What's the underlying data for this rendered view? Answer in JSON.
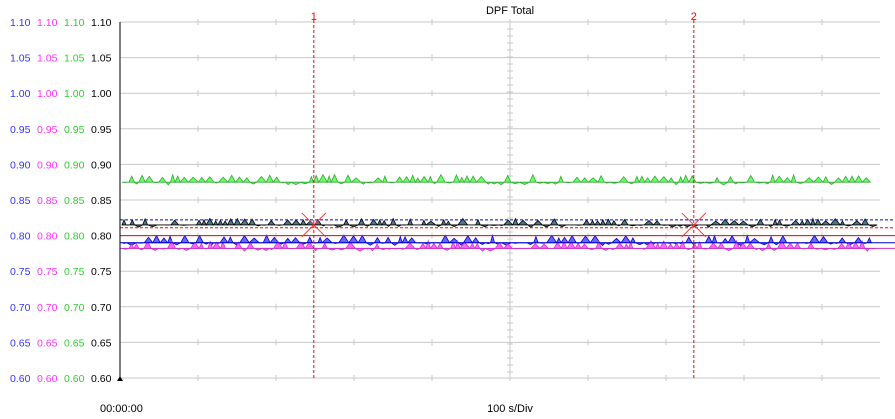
{
  "chart_data": {
    "type": "line",
    "title": "DPF  Total",
    "xlabel": "100 s/Div",
    "x_start_label": "00:00:00",
    "ylim": [
      0.6,
      1.1
    ],
    "y_ticks": [
      1.1,
      1.05,
      1.0,
      0.95,
      0.9,
      0.85,
      0.8,
      0.75,
      0.7,
      0.65,
      0.6
    ],
    "y_tick_labels": [
      "1.10",
      "1.05",
      "1.00",
      "0.95",
      "0.90",
      "0.85",
      "0.80",
      "0.75",
      "0.70",
      "0.65",
      "0.60"
    ],
    "axis_colors": [
      "#3333ff",
      "#ff33ff",
      "#33cc33",
      "#000000"
    ],
    "grid": true,
    "cursors": [
      {
        "label": "1",
        "x_fraction": 0.255
      },
      {
        "label": "2",
        "x_fraction": 0.755
      }
    ],
    "series": [
      {
        "color": "#66ff66",
        "edge": "#33aa33",
        "baseline": 0.875,
        "values": [
          0.88
        ]
      },
      {
        "color": "#4a7a80",
        "edge": "#000000",
        "baseline": 0.815,
        "values": [
          0.82
        ]
      },
      {
        "color": "#6666ff",
        "edge": "#0000cc",
        "baseline": 0.79,
        "values": [
          0.8
        ]
      },
      {
        "color": "#ff66ff",
        "edge": "#cc33cc",
        "baseline": 0.782,
        "values": [
          0.79
        ]
      }
    ],
    "reference_lines": [
      {
        "value": 0.822,
        "color": "#0000cc",
        "style": "dashed"
      },
      {
        "value": 0.811,
        "color": "#ff0000",
        "style": "dashed"
      },
      {
        "value": 0.8,
        "color": "#ff0000",
        "style": "solid"
      },
      {
        "value": 0.79,
        "color": "#0000cc",
        "style": "solid"
      },
      {
        "value": 0.782,
        "color": "#cc33cc",
        "style": "solid"
      }
    ]
  }
}
